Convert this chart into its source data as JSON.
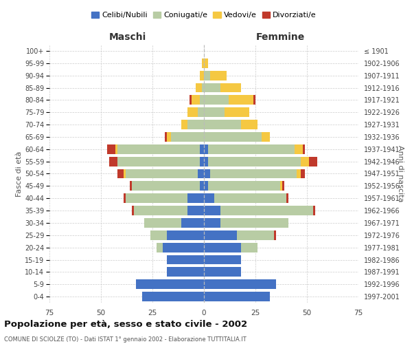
{
  "age_groups": [
    "0-4",
    "5-9",
    "10-14",
    "15-19",
    "20-24",
    "25-29",
    "30-34",
    "35-39",
    "40-44",
    "45-49",
    "50-54",
    "55-59",
    "60-64",
    "65-69",
    "70-74",
    "75-79",
    "80-84",
    "85-89",
    "90-94",
    "95-99",
    "100+"
  ],
  "birth_years": [
    "1997-2001",
    "1992-1996",
    "1987-1991",
    "1982-1986",
    "1977-1981",
    "1972-1976",
    "1967-1971",
    "1962-1966",
    "1957-1961",
    "1952-1956",
    "1947-1951",
    "1942-1946",
    "1937-1941",
    "1932-1936",
    "1927-1931",
    "1922-1926",
    "1917-1921",
    "1912-1916",
    "1907-1911",
    "1902-1906",
    "≤ 1901"
  ],
  "colors": {
    "celibi": "#4472c4",
    "coniugati": "#b8cca4",
    "vedovi": "#f5c842",
    "divorziati": "#c0392b"
  },
  "maschi": {
    "celibi": [
      30,
      33,
      18,
      18,
      20,
      18,
      11,
      8,
      8,
      2,
      3,
      2,
      2,
      0,
      0,
      0,
      0,
      0,
      0,
      0,
      0
    ],
    "coniugati": [
      0,
      0,
      0,
      0,
      3,
      8,
      18,
      26,
      30,
      33,
      35,
      40,
      40,
      16,
      8,
      3,
      2,
      1,
      0,
      0,
      0
    ],
    "vedovi": [
      0,
      0,
      0,
      0,
      0,
      0,
      0,
      0,
      0,
      0,
      1,
      0,
      1,
      2,
      3,
      5,
      4,
      3,
      2,
      1,
      0
    ],
    "divorziati": [
      0,
      0,
      0,
      0,
      0,
      0,
      0,
      1,
      1,
      1,
      3,
      4,
      4,
      1,
      0,
      0,
      1,
      0,
      0,
      0,
      0
    ]
  },
  "femmine": {
    "celibi": [
      32,
      35,
      18,
      18,
      18,
      16,
      8,
      8,
      5,
      2,
      3,
      2,
      2,
      0,
      0,
      0,
      0,
      0,
      0,
      0,
      0
    ],
    "coniugati": [
      0,
      0,
      0,
      0,
      8,
      18,
      33,
      45,
      35,
      35,
      42,
      45,
      42,
      28,
      18,
      10,
      12,
      8,
      3,
      0,
      0
    ],
    "vedovi": [
      0,
      0,
      0,
      0,
      0,
      0,
      0,
      0,
      0,
      1,
      2,
      4,
      4,
      4,
      8,
      12,
      12,
      10,
      8,
      2,
      0
    ],
    "divorziati": [
      0,
      0,
      0,
      0,
      0,
      1,
      0,
      1,
      1,
      1,
      2,
      4,
      1,
      0,
      0,
      0,
      1,
      0,
      0,
      0,
      0
    ]
  },
  "title": "Popolazione per età, sesso e stato civile - 2002",
  "subtitle": "COMUNE DI SCIOLZE (TO) - Dati ISTAT 1° gennaio 2002 - Elaborazione TUTTITALIA.IT",
  "xlabel_left": "Maschi",
  "xlabel_right": "Femmine",
  "ylabel_left": "Fasce di età",
  "ylabel_right": "Anni di nascita",
  "xlim": 75,
  "legend_labels": [
    "Celibi/Nubili",
    "Coniugati/e",
    "Vedovi/e",
    "Divorziati/e"
  ],
  "background_color": "#ffffff",
  "grid_color": "#cccccc"
}
